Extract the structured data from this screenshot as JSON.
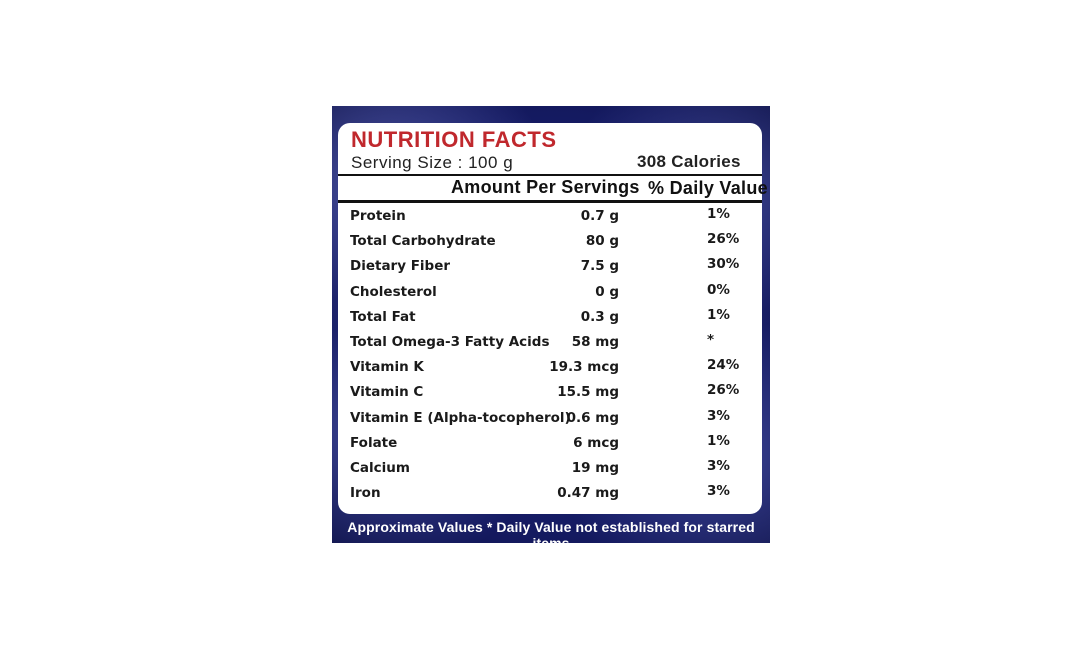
{
  "label": {
    "title": "NUTRITION FACTS",
    "serving_size": "Serving  Size  :  100  g",
    "calories": "308  Calories",
    "header_amount": "Amount Per Servings",
    "header_daily": "% Daily Value",
    "footer": "Approximate Values * Daily Value not established for starred items"
  },
  "nutrients": [
    {
      "name": "Protein",
      "amount": "0.7 g",
      "daily": "1%"
    },
    {
      "name": "Total Carbohydrate",
      "amount": "80 g",
      "daily": "26%"
    },
    {
      "name": "Dietary Fiber",
      "amount": "7.5 g",
      "daily": "30%"
    },
    {
      "name": "Cholesterol",
      "amount": "0 g",
      "daily": "0%"
    },
    {
      "name": "Total Fat",
      "amount": "0.3 g",
      "daily": "1%"
    },
    {
      "name": "Total Omega-3 Fatty Acids",
      "amount": "58 mg",
      "daily": "*"
    },
    {
      "name": "Vitamin K",
      "amount": "19.3 mcg",
      "daily": "24%"
    },
    {
      "name": "Vitamin C",
      "amount": "15.5 mg",
      "daily": "26%"
    },
    {
      "name": "Vitamin E (Alpha-tocopherol)",
      "amount": "0.6 mg",
      "daily": "3%"
    },
    {
      "name": "Folate",
      "amount": "6 mcg",
      "daily": "1%"
    },
    {
      "name": "Calcium",
      "amount": "19 mg",
      "daily": "3%"
    },
    {
      "name": "Iron",
      "amount": "0.47 mg",
      "daily": "3%"
    }
  ],
  "colors": {
    "title_red": "#c0282d",
    "panel_blue": "#161c66"
  }
}
